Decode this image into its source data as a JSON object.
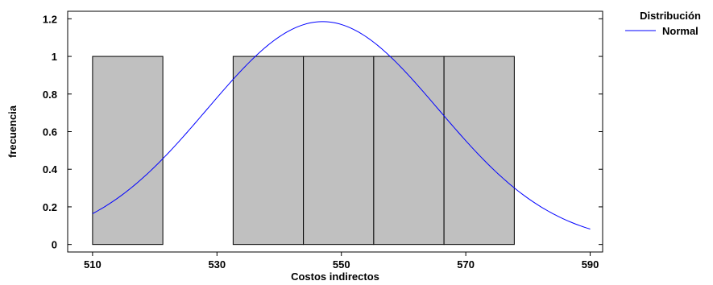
{
  "chart_data": {
    "type": "bar",
    "xlabel": "Costos indirectos",
    "ylabel": "frecuencia",
    "xlim": [
      506,
      592
    ],
    "ylim": [
      -0.04,
      1.24
    ],
    "xticks": [
      510,
      530,
      550,
      570,
      590
    ],
    "yticks": [
      0,
      0.2,
      0.4,
      0.6,
      0.8,
      1,
      1.2
    ],
    "ytick_labels": [
      "0",
      "0.2",
      "0.4",
      "0.6",
      "0.8",
      "1",
      "1.2"
    ],
    "bins": [
      {
        "start": 510.0,
        "end": 521.3,
        "value": 1
      },
      {
        "start": 521.3,
        "end": 532.6,
        "value": 0
      },
      {
        "start": 532.6,
        "end": 543.9,
        "value": 1
      },
      {
        "start": 543.9,
        "end": 555.2,
        "value": 1
      },
      {
        "start": 555.2,
        "end": 566.5,
        "value": 1
      },
      {
        "start": 566.5,
        "end": 577.8,
        "value": 1
      }
    ],
    "normal_curve": {
      "mean": 547.0,
      "sd": 18.6,
      "peak": 1.185,
      "x_range": [
        510,
        590
      ]
    },
    "bar_fill": "#c0c0c0",
    "bar_stroke": "#000000",
    "curve_color": "#0000ff",
    "legend": {
      "title": "Distribución",
      "entries": [
        {
          "label": "Normal",
          "color": "#0000ff"
        }
      ]
    },
    "grid": false
  }
}
